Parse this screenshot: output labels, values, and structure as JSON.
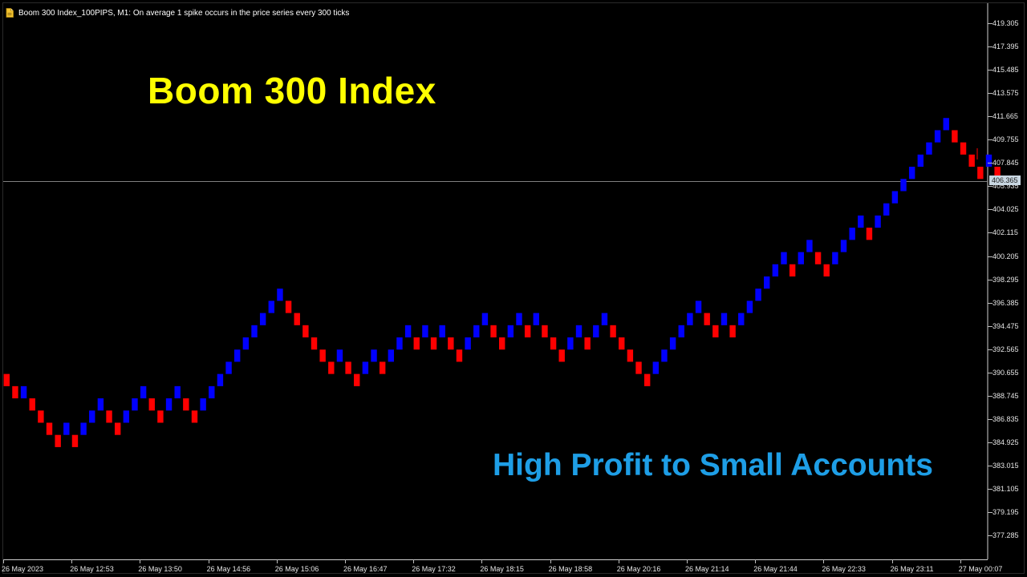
{
  "window": {
    "title": "Boom 300 Index_100PIPS, M1:  On average 1 spike occurs in the price series every 300 ticks",
    "icon": "document-icon"
  },
  "overlay": {
    "headline": "Boom 300 Index",
    "subheadline": "High Profit to Small Accounts",
    "headline_color": "#ffff00",
    "subheadline_color": "#1e9ee6"
  },
  "chart_data": {
    "type": "renko",
    "brick_size": 1,
    "colors": {
      "up": "#0000ff",
      "down": "#ff0000",
      "background": "#000000",
      "price_line": "#808080"
    },
    "current_price_label": "406.365",
    "current_price": 406.365,
    "y_ticks": [
      "419.305",
      "417.395",
      "415.485",
      "413.575",
      "411.665",
      "409.755",
      "407.845",
      "405.935",
      "404.025",
      "402.115",
      "400.205",
      "398.295",
      "396.385",
      "394.475",
      "392.565",
      "390.655",
      "388.745",
      "386.835",
      "384.925",
      "383.015",
      "381.105",
      "379.195",
      "377.285"
    ],
    "ylim": [
      376.3,
      420.6
    ],
    "x_labels": [
      "26 May 2023",
      "26 May 12:53",
      "26 May 13:50",
      "26 May 14:56",
      "26 May 15:06",
      "26 May 16:47",
      "26 May 17:32",
      "26 May 18:15",
      "26 May 18:58",
      "26 May 20:16",
      "26 May 21:14",
      "26 May 21:44",
      "26 May 22:33",
      "26 May 23:11",
      "27 May 00:07"
    ],
    "bricks": [
      {
        "dir": "down",
        "low": 389.53
      },
      {
        "dir": "down",
        "low": 388.53
      },
      {
        "dir": "up",
        "low": 388.53
      },
      {
        "dir": "down",
        "low": 387.53
      },
      {
        "dir": "down",
        "low": 386.53
      },
      {
        "dir": "down",
        "low": 385.53
      },
      {
        "dir": "down",
        "low": 384.53
      },
      {
        "dir": "up",
        "low": 385.53
      },
      {
        "dir": "down",
        "low": 384.53
      },
      {
        "dir": "up",
        "low": 385.53
      },
      {
        "dir": "up",
        "low": 386.53
      },
      {
        "dir": "up",
        "low": 387.53
      },
      {
        "dir": "down",
        "low": 386.53
      },
      {
        "dir": "down",
        "low": 385.53
      },
      {
        "dir": "up",
        "low": 386.53
      },
      {
        "dir": "up",
        "low": 387.53
      },
      {
        "dir": "up",
        "low": 388.53
      },
      {
        "dir": "down",
        "low": 387.53
      },
      {
        "dir": "down",
        "low": 386.53
      },
      {
        "dir": "up",
        "low": 387.53
      },
      {
        "dir": "up",
        "low": 388.53
      },
      {
        "dir": "down",
        "low": 387.53
      },
      {
        "dir": "down",
        "low": 386.53
      },
      {
        "dir": "up",
        "low": 387.53
      },
      {
        "dir": "up",
        "low": 388.53
      },
      {
        "dir": "up",
        "low": 389.53
      },
      {
        "dir": "up",
        "low": 390.53
      },
      {
        "dir": "up",
        "low": 391.53
      },
      {
        "dir": "up",
        "low": 392.53
      },
      {
        "dir": "up",
        "low": 393.53
      },
      {
        "dir": "up",
        "low": 394.53
      },
      {
        "dir": "up",
        "low": 395.53
      },
      {
        "dir": "up",
        "low": 396.53
      },
      {
        "dir": "down",
        "low": 395.53
      },
      {
        "dir": "down",
        "low": 394.53
      },
      {
        "dir": "down",
        "low": 393.53
      },
      {
        "dir": "down",
        "low": 392.53
      },
      {
        "dir": "down",
        "low": 391.53
      },
      {
        "dir": "down",
        "low": 390.53
      },
      {
        "dir": "up",
        "low": 391.53
      },
      {
        "dir": "down",
        "low": 390.53
      },
      {
        "dir": "down",
        "low": 389.53
      },
      {
        "dir": "up",
        "low": 390.53
      },
      {
        "dir": "up",
        "low": 391.53
      },
      {
        "dir": "down",
        "low": 390.53
      },
      {
        "dir": "up",
        "low": 391.53
      },
      {
        "dir": "up",
        "low": 392.53
      },
      {
        "dir": "up",
        "low": 393.53
      },
      {
        "dir": "down",
        "low": 392.53
      },
      {
        "dir": "up",
        "low": 393.53
      },
      {
        "dir": "down",
        "low": 392.53
      },
      {
        "dir": "up",
        "low": 393.53
      },
      {
        "dir": "down",
        "low": 392.53
      },
      {
        "dir": "down",
        "low": 391.53
      },
      {
        "dir": "up",
        "low": 392.53
      },
      {
        "dir": "up",
        "low": 393.53
      },
      {
        "dir": "up",
        "low": 394.53
      },
      {
        "dir": "down",
        "low": 393.53
      },
      {
        "dir": "down",
        "low": 392.53
      },
      {
        "dir": "up",
        "low": 393.53
      },
      {
        "dir": "up",
        "low": 394.53
      },
      {
        "dir": "down",
        "low": 393.53
      },
      {
        "dir": "up",
        "low": 394.53
      },
      {
        "dir": "down",
        "low": 393.53
      },
      {
        "dir": "down",
        "low": 392.53
      },
      {
        "dir": "down",
        "low": 391.53
      },
      {
        "dir": "up",
        "low": 392.53
      },
      {
        "dir": "up",
        "low": 393.53
      },
      {
        "dir": "down",
        "low": 392.53
      },
      {
        "dir": "up",
        "low": 393.53
      },
      {
        "dir": "up",
        "low": 394.53
      },
      {
        "dir": "down",
        "low": 393.53
      },
      {
        "dir": "down",
        "low": 392.53
      },
      {
        "dir": "down",
        "low": 391.53
      },
      {
        "dir": "down",
        "low": 390.53
      },
      {
        "dir": "down",
        "low": 389.53
      },
      {
        "dir": "up",
        "low": 390.53
      },
      {
        "dir": "up",
        "low": 391.53
      },
      {
        "dir": "up",
        "low": 392.53
      },
      {
        "dir": "up",
        "low": 393.53
      },
      {
        "dir": "up",
        "low": 394.53
      },
      {
        "dir": "up",
        "low": 395.53
      },
      {
        "dir": "down",
        "low": 394.53
      },
      {
        "dir": "down",
        "low": 393.53
      },
      {
        "dir": "up",
        "low": 394.53
      },
      {
        "dir": "down",
        "low": 393.53
      },
      {
        "dir": "up",
        "low": 394.53
      },
      {
        "dir": "up",
        "low": 395.53
      },
      {
        "dir": "up",
        "low": 396.53
      },
      {
        "dir": "up",
        "low": 397.53
      },
      {
        "dir": "up",
        "low": 398.53
      },
      {
        "dir": "up",
        "low": 399.53
      },
      {
        "dir": "down",
        "low": 398.53
      },
      {
        "dir": "up",
        "low": 399.53
      },
      {
        "dir": "up",
        "low": 400.53
      },
      {
        "dir": "down",
        "low": 399.53
      },
      {
        "dir": "down",
        "low": 398.53
      },
      {
        "dir": "up",
        "low": 399.53
      },
      {
        "dir": "up",
        "low": 400.53
      },
      {
        "dir": "up",
        "low": 401.53
      },
      {
        "dir": "up",
        "low": 402.53
      },
      {
        "dir": "down",
        "low": 401.53
      },
      {
        "dir": "up",
        "low": 402.53
      },
      {
        "dir": "up",
        "low": 403.53
      },
      {
        "dir": "up",
        "low": 404.53
      },
      {
        "dir": "up",
        "low": 405.53
      },
      {
        "dir": "up",
        "low": 406.53
      },
      {
        "dir": "up",
        "low": 407.53
      },
      {
        "dir": "up",
        "low": 408.53
      },
      {
        "dir": "up",
        "low": 409.53
      },
      {
        "dir": "up",
        "low": 410.53
      },
      {
        "dir": "down",
        "low": 409.53
      },
      {
        "dir": "down",
        "low": 408.53
      },
      {
        "dir": "down",
        "low": 407.53
      },
      {
        "dir": "down",
        "low": 406.53
      },
      {
        "dir": "up",
        "low": 407.53
      },
      {
        "dir": "down",
        "low": 406.53
      }
    ]
  }
}
